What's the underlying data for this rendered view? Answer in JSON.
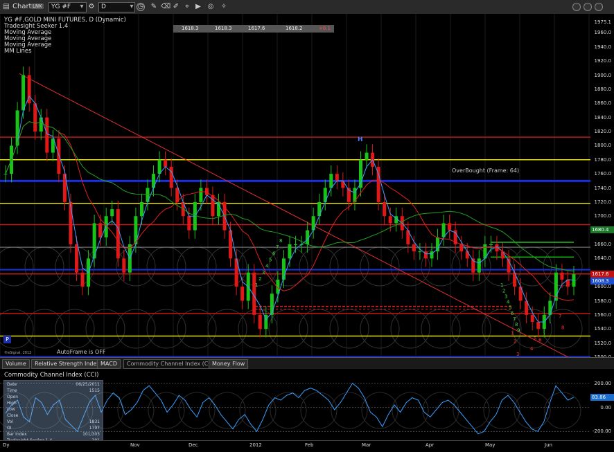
{
  "window": {
    "title": "Chart",
    "link_badge": "LNK",
    "symbol": "YG #F",
    "period": "D"
  },
  "toolbar": {
    "icons": [
      "clock-icon",
      "pencil-icon",
      "eraser-icon",
      "play-icon",
      "target-icon",
      "bookmark-icon"
    ]
  },
  "legend": {
    "items": [
      "YG #F,GOLD MINI FUTURES, D (Dynamic)",
      "Tradesight Seeker 1.4",
      "Moving Average",
      "Moving Average",
      "Moving Average",
      "MM Lines"
    ]
  },
  "ohlc_bar": {
    "values": [
      "1618.3",
      "1618.3",
      "1617.6",
      "1618.2",
      "+0.1"
    ]
  },
  "annotations": {
    "overbought": "OverBought (Frame: 64)",
    "autoframe": "AutoFrame is OFF",
    "copyright": "©eSignal, 2012",
    "peak_label": "H",
    "badge": "P",
    "seeker_low": [
      "1",
      "2",
      "3",
      "4",
      "5",
      "6",
      "7",
      "8"
    ],
    "seeker_left": [
      "1",
      "2",
      "3",
      "4",
      "5",
      "6",
      "7",
      "8"
    ],
    "seeker_right": [
      "1",
      "2",
      "3",
      "4",
      "5",
      "6",
      "7",
      "8",
      "9"
    ]
  },
  "price_axis": {
    "ticks": [
      "1975.1",
      "1960.0",
      "1940.0",
      "1920.0",
      "1900.0",
      "1880.0",
      "1860.0",
      "1840.0",
      "1820.0",
      "1800.0",
      "1780.0",
      "1760.0",
      "1740.0",
      "1720.0",
      "1700.0",
      "1680.0",
      "1660.0",
      "1640.0",
      "1620.0",
      "1600.0",
      "1580.0",
      "1560.0",
      "1540.0",
      "1520.0",
      "1500.0"
    ],
    "boxes": [
      {
        "label": "1680.4",
        "value": 1680.4,
        "color": "#1a7a2a"
      },
      {
        "label": "1617.6",
        "value": 1617.6,
        "color": "#c01010"
      },
      {
        "label": "1608.3",
        "value": 1608.3,
        "color": "#1a4fd0"
      }
    ]
  },
  "tabs": [
    {
      "label": "Volume",
      "active": false
    },
    {
      "label": "Relative Strength Index",
      "active": false
    },
    {
      "label": "MACD",
      "active": false
    },
    {
      "label": "Commodity Channel Index (CCI)",
      "active": true
    },
    {
      "label": "Money Flow",
      "active": false
    }
  ],
  "cci": {
    "title": "Commodity Channel Index (CCI)",
    "ticks": [
      "200.00",
      "0.00",
      "-200.00"
    ],
    "box": {
      "label": "83.86",
      "value": 83.86
    },
    "databox": {
      "labels": [
        "Date",
        "Time",
        "Open",
        "High",
        "Low",
        "Close",
        "Vol",
        "OI",
        "Bar Index",
        "Tradesight Seeker 1.4"
      ],
      "values": [
        "06/25/2011",
        "1515",
        "",
        "",
        "",
        "",
        "1831",
        "1797",
        "101/303",
        "-201"
      ],
      "bottom": [
        "Ba",
        "12/26/2011",
        "Oct"
      ]
    }
  },
  "time_axis": {
    "labels": [
      "Nov",
      "Dec",
      "2012",
      "Feb",
      "Mar",
      "Apr",
      "May",
      "Jun"
    ],
    "left_label": "Dy"
  },
  "chart_data": {
    "type": "candlestick",
    "title": "YG #F,GOLD MINI FUTURES, D (Dynamic)",
    "ylim": [
      1500,
      1975.1
    ],
    "months": [
      "Nov",
      "Dec",
      "2012",
      "Feb",
      "Mar",
      "Apr",
      "May",
      "Jun"
    ],
    "close_path": [
      1760,
      1800,
      1850,
      1900,
      1860,
      1820,
      1840,
      1790,
      1810,
      1760,
      1720,
      1660,
      1620,
      1600,
      1640,
      1690,
      1670,
      1700,
      1710,
      1640,
      1620,
      1660,
      1700,
      1720,
      1740,
      1760,
      1780,
      1770,
      1740,
      1720,
      1700,
      1680,
      1720,
      1740,
      1730,
      1700,
      1720,
      1680,
      1640,
      1600,
      1580,
      1620,
      1560,
      1540,
      1560,
      1590,
      1610,
      1640,
      1660,
      1660,
      1660,
      1680,
      1700,
      1720,
      1740,
      1760,
      1750,
      1740,
      1720,
      1740,
      1780,
      1790,
      1770,
      1720,
      1700,
      1690,
      1700,
      1680,
      1660,
      1650,
      1650,
      1640,
      1650,
      1670,
      1690,
      1680,
      1660,
      1650,
      1640,
      1620,
      1640,
      1660,
      1660,
      1650,
      1640,
      1620,
      1600,
      1580,
      1560,
      1550,
      1540,
      1560,
      1580,
      1620,
      1610,
      1600,
      1617.6
    ],
    "horizontal_levels": [
      {
        "value": 1812,
        "color": "#c01818",
        "width": 1.5
      },
      {
        "value": 1780,
        "color": "#e8e000",
        "width": 1.5
      },
      {
        "value": 1750,
        "color": "#1a2fe0",
        "width": 3
      },
      {
        "value": 1718,
        "color": "#e8e000",
        "width": 1.5
      },
      {
        "value": 1688,
        "color": "#c01818",
        "width": 1.5
      },
      {
        "value": 1656,
        "color": "#888888",
        "width": 1
      },
      {
        "value": 1624,
        "color": "#1a2fe0",
        "width": 2
      },
      {
        "value": 1618,
        "color": "#c01818",
        "width": 1.5
      },
      {
        "value": 1562,
        "color": "#c01818",
        "width": 1.5
      },
      {
        "value": 1530,
        "color": "#e8e000",
        "width": 1.5
      },
      {
        "value": 1500,
        "color": "#1a2fe0",
        "width": 3
      }
    ],
    "cci_series": [
      -50,
      20,
      60,
      -80,
      -120,
      80,
      40,
      -60,
      20,
      60,
      -100,
      -150,
      -200,
      -80,
      40,
      100,
      -40,
      60,
      120,
      80,
      -60,
      -20,
      40,
      140,
      180,
      120,
      60,
      -40,
      20,
      100,
      60,
      -20,
      -80,
      40,
      80,
      20,
      -60,
      -120,
      -180,
      -100,
      -60,
      -140,
      -200,
      -100,
      20,
      80,
      60,
      100,
      120,
      80,
      140,
      160,
      140,
      100,
      60,
      -20,
      40,
      120,
      200,
      160,
      80,
      -40,
      -80,
      -160,
      -60,
      20,
      -40,
      40,
      80,
      60,
      -40,
      -80,
      -20,
      40,
      60,
      20,
      -40,
      -100,
      -160,
      -220,
      -200,
      -120,
      -60,
      60,
      100,
      40,
      -40,
      -120,
      -180,
      -200,
      -120,
      40,
      180,
      120,
      60,
      83.86
    ]
  }
}
